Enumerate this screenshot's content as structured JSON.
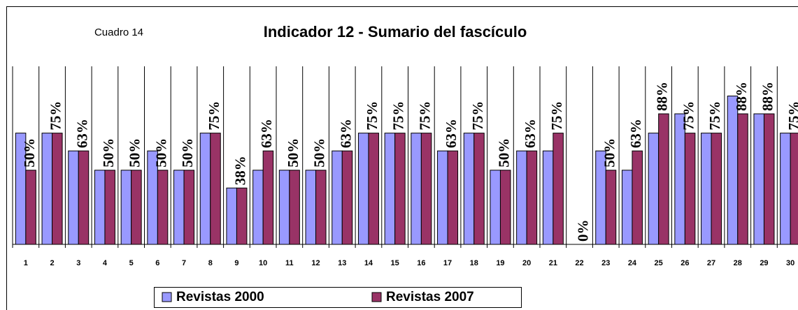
{
  "chart_data": {
    "type": "bar",
    "title": "Indicador 12  -  Sumario del fascículo",
    "annotation": "Cuadro 14",
    "categories": [
      "1",
      "2",
      "3",
      "4",
      "5",
      "6",
      "7",
      "8",
      "9",
      "10",
      "11",
      "12",
      "13",
      "14",
      "15",
      "16",
      "17",
      "18",
      "19",
      "20",
      "21",
      "22",
      "23",
      "24",
      "25",
      "26",
      "27",
      "28",
      "29",
      "30"
    ],
    "series": [
      {
        "name": "Revistas 2000",
        "color": "#9999ff",
        "values": [
          75,
          75,
          63,
          50,
          50,
          63,
          50,
          75,
          38,
          50,
          50,
          50,
          63,
          75,
          75,
          75,
          63,
          75,
          50,
          63,
          63,
          0,
          63,
          50,
          75,
          88,
          75,
          100,
          88,
          75
        ]
      },
      {
        "name": "Revistas 2007",
        "color": "#993366",
        "values": [
          50,
          75,
          63,
          50,
          50,
          50,
          50,
          75,
          38,
          63,
          50,
          50,
          63,
          75,
          75,
          75,
          63,
          75,
          50,
          63,
          75,
          0,
          50,
          63,
          88,
          75,
          75,
          88,
          88,
          75
        ],
        "value_labels": [
          "50%",
          "75%",
          "63%",
          "50%",
          "50%",
          "50%",
          "50%",
          "75%",
          "38%",
          "63%",
          "50%",
          "50%",
          "63%",
          "75%",
          "75%",
          "75%",
          "63%",
          "75%",
          "50%",
          "63%",
          "75%",
          "0%",
          "50%",
          "63%",
          "88%",
          "75%",
          "75%",
          "88%",
          "88%",
          "75%"
        ]
      }
    ],
    "ylim": [
      0,
      120
    ],
    "legend": "bottom"
  }
}
